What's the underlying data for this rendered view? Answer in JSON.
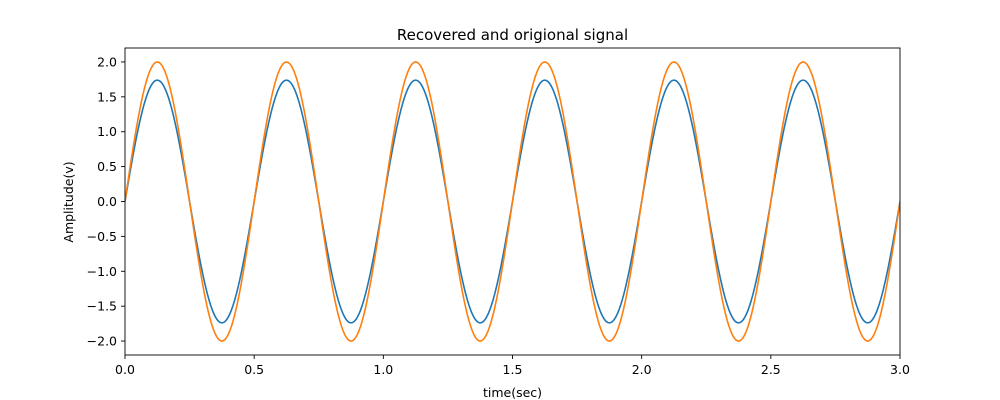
{
  "chart_data": {
    "type": "line",
    "title": "Recovered and origional signal",
    "xlabel": "time(sec)",
    "ylabel": "Amplitude(v)",
    "xlim": [
      0.0,
      3.0
    ],
    "ylim": [
      -2.2,
      2.2
    ],
    "x_ticks": [
      "0.0",
      "0.5",
      "1.0",
      "1.5",
      "2.0",
      "2.5",
      "3.0"
    ],
    "y_ticks": [
      "-2.0",
      "-1.5",
      "-1.0",
      "-0.5",
      "0.0",
      "0.5",
      "1.0",
      "1.5",
      "2.0"
    ],
    "grid": false,
    "legend": "none",
    "series": [
      {
        "color": "#1f77b4",
        "points": [
          [
            0.0,
            0.0
          ],
          [
            0.125,
            1.74
          ],
          [
            0.25,
            0.0
          ],
          [
            0.375,
            -1.74
          ],
          [
            0.5,
            0.0
          ],
          [
            0.625,
            1.74
          ],
          [
            0.75,
            0.0
          ],
          [
            0.875,
            -1.74
          ],
          [
            1.0,
            0.0
          ],
          [
            1.125,
            1.74
          ],
          [
            1.25,
            0.0
          ],
          [
            1.375,
            -1.74
          ],
          [
            1.5,
            0.0
          ],
          [
            1.625,
            1.74
          ],
          [
            1.75,
            0.0
          ],
          [
            1.875,
            -1.74
          ],
          [
            2.0,
            0.0
          ],
          [
            2.125,
            1.74
          ],
          [
            2.25,
            0.0
          ],
          [
            2.375,
            -1.74
          ],
          [
            2.5,
            0.0
          ],
          [
            2.625,
            1.74
          ],
          [
            2.75,
            0.0
          ],
          [
            2.875,
            -1.74
          ],
          [
            3.0,
            0.0
          ]
        ]
      },
      {
        "color": "#ff7f0e",
        "points": [
          [
            0.0,
            0.0
          ],
          [
            0.125,
            2.0
          ],
          [
            0.25,
            0.0
          ],
          [
            0.375,
            -2.0
          ],
          [
            0.5,
            0.0
          ],
          [
            0.625,
            2.0
          ],
          [
            0.75,
            0.0
          ],
          [
            0.875,
            -2.0
          ],
          [
            1.0,
            0.0
          ],
          [
            1.125,
            2.0
          ],
          [
            1.25,
            0.0
          ],
          [
            1.375,
            -2.0
          ],
          [
            1.5,
            0.0
          ],
          [
            1.625,
            2.0
          ],
          [
            1.75,
            0.0
          ],
          [
            1.875,
            -2.0
          ],
          [
            2.0,
            0.0
          ],
          [
            2.125,
            2.0
          ],
          [
            2.25,
            0.0
          ],
          [
            2.375,
            -2.0
          ],
          [
            2.5,
            0.0
          ],
          [
            2.625,
            2.0
          ],
          [
            2.75,
            0.0
          ],
          [
            2.875,
            -2.0
          ],
          [
            3.0,
            0.0
          ]
        ]
      }
    ]
  }
}
